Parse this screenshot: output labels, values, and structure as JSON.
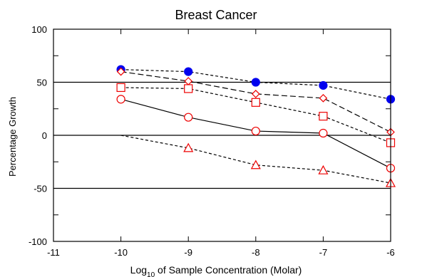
{
  "chart_data": {
    "type": "line",
    "title": "Breast Cancer",
    "xlabel_prefix": "Log",
    "xlabel_sub": "10",
    "xlabel_suffix": " of Sample Concentration (Molar)",
    "ylabel": "Percentage Growth",
    "xlim": [
      -11,
      -6
    ],
    "ylim": [
      -100,
      100
    ],
    "xticks": [
      -11,
      -10,
      -9,
      -8,
      -7,
      -6
    ],
    "yticks": [
      -100,
      -50,
      0,
      50,
      100
    ],
    "reference_lines": [
      -50,
      0,
      50
    ],
    "grid": false,
    "series": [
      {
        "marker": "filled-circle",
        "color": "#0000ee",
        "dash": "4,3",
        "x": [
          -10,
          -9,
          -8,
          -7,
          -6
        ],
        "y": [
          62,
          60,
          50,
          47,
          34
        ]
      },
      {
        "marker": "diamond",
        "color": "#ee0000",
        "dash": "8,4",
        "x": [
          -10,
          -9,
          -8,
          -7,
          -6
        ],
        "y": [
          60,
          51,
          39,
          35,
          3
        ]
      },
      {
        "marker": "square",
        "color": "#ee0000",
        "dash": "4,3",
        "x": [
          -10,
          -9,
          -8,
          -7,
          -6
        ],
        "y": [
          45,
          44,
          31,
          18,
          -7
        ]
      },
      {
        "marker": "circle",
        "color": "#ee0000",
        "dash": "",
        "x": [
          -10,
          -9,
          -8,
          -7,
          -6
        ],
        "y": [
          34,
          17,
          4,
          2,
          -31
        ]
      },
      {
        "marker": "triangle",
        "color": "#ee0000",
        "dash": "4,3",
        "x": [
          -10,
          -9,
          -8,
          -7,
          -6
        ],
        "y": [
          0,
          -12,
          -28,
          -33,
          -45
        ]
      }
    ]
  }
}
